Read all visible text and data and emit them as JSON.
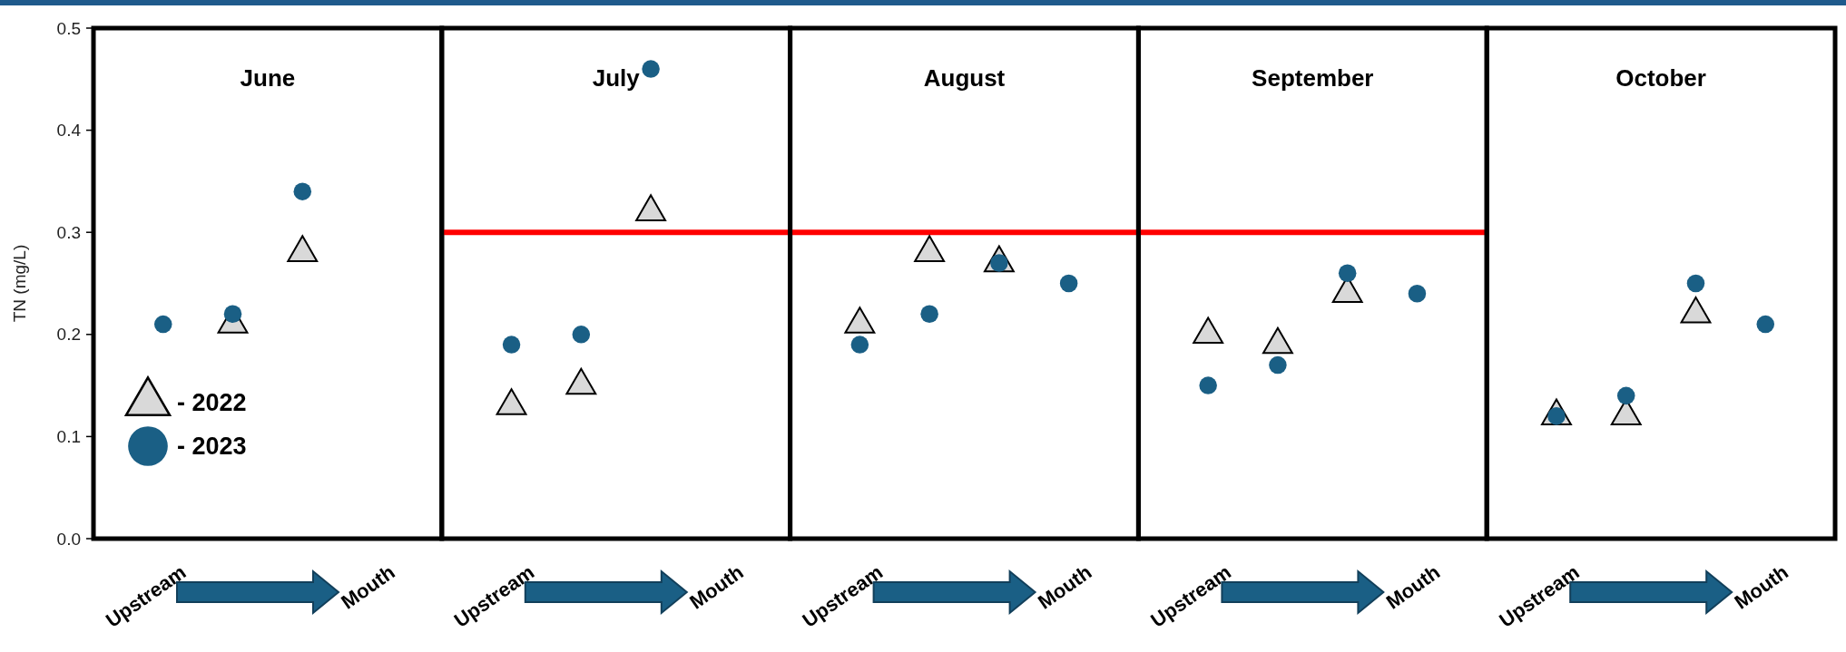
{
  "chart_data": [
    {
      "type": "scatter",
      "title": "June",
      "ylabel": "TN (mg/L)",
      "categories": [
        "Upstream",
        null,
        null,
        "Mouth"
      ],
      "ylim": [
        0,
        0.5
      ],
      "yticks": [
        {
          "value": 0,
          "label": "0.0"
        },
        0.1,
        0.2,
        0.3,
        0.4,
        0.5
      ],
      "legend": "bottom left",
      "grid": false,
      "series": [
        {
          "name": "- 2022",
          "color": "#d9d9d9",
          "marker": "triangle",
          "values": [
            null,
            0.21,
            0.28,
            null
          ]
        },
        {
          "name": "- 2023",
          "color": "#1a5f85",
          "marker": "circle",
          "values": [
            0.21,
            0.22,
            0.34,
            null
          ]
        }
      ]
    },
    {
      "type": "scatter",
      "title": "July",
      "categories": [
        "Upstream",
        null,
        null,
        "Mouth"
      ],
      "ylim": [
        0,
        0.5
      ],
      "tick_labels": "x",
      "grid": false,
      "ref_lines": [
        {
          "axis": "y",
          "value": 0.3,
          "color": "#ff0000"
        }
      ],
      "series": [
        {
          "color": "#d9d9d9",
          "marker": "triangle",
          "values": [
            0.13,
            0.15,
            0.32,
            null
          ]
        },
        {
          "color": "#1a5f85",
          "marker": "circle",
          "values": [
            0.19,
            0.2,
            0.46,
            null
          ]
        }
      ]
    },
    {
      "type": "scatter",
      "title": "August",
      "categories": [
        "Upstream",
        null,
        null,
        "Mouth"
      ],
      "ylim": [
        0,
        0.5
      ],
      "tick_labels": "x",
      "grid": false,
      "ref_lines": [
        {
          "axis": "y",
          "value": 0.3,
          "color": "#ff0000"
        }
      ],
      "series": [
        {
          "color": "#d9d9d9",
          "marker": "triangle",
          "values": [
            0.21,
            0.28,
            0.27,
            null
          ]
        },
        {
          "color": "#1a5f85",
          "marker": "circle",
          "values": [
            0.19,
            0.22,
            0.27,
            0.25
          ]
        }
      ]
    },
    {
      "type": "scatter",
      "title": "September",
      "categories": [
        "Upstream",
        null,
        null,
        "Mouth"
      ],
      "ylim": [
        0,
        0.5
      ],
      "tick_labels": "x",
      "grid": false,
      "ref_lines": [
        {
          "axis": "y",
          "value": 0.3,
          "color": "#ff0000"
        }
      ],
      "series": [
        {
          "color": "#d9d9d9",
          "marker": "triangle",
          "values": [
            0.2,
            0.19,
            0.24,
            null
          ]
        },
        {
          "color": "#1a5f85",
          "marker": "circle",
          "values": [
            0.15,
            0.17,
            0.26,
            0.24
          ]
        }
      ]
    },
    {
      "type": "scatter",
      "title": "October",
      "categories": [
        "Upstream",
        null,
        null,
        "Mouth"
      ],
      "ylim": [
        0,
        0.5
      ],
      "tick_labels": "x",
      "grid": false,
      "series": [
        {
          "color": "#d9d9d9",
          "marker": "triangle",
          "values": [
            0.12,
            0.12,
            0.22,
            null
          ]
        },
        {
          "color": "#1a5f85",
          "marker": "circle",
          "values": [
            0.12,
            0.14,
            0.25,
            0.21
          ]
        }
      ]
    }
  ]
}
